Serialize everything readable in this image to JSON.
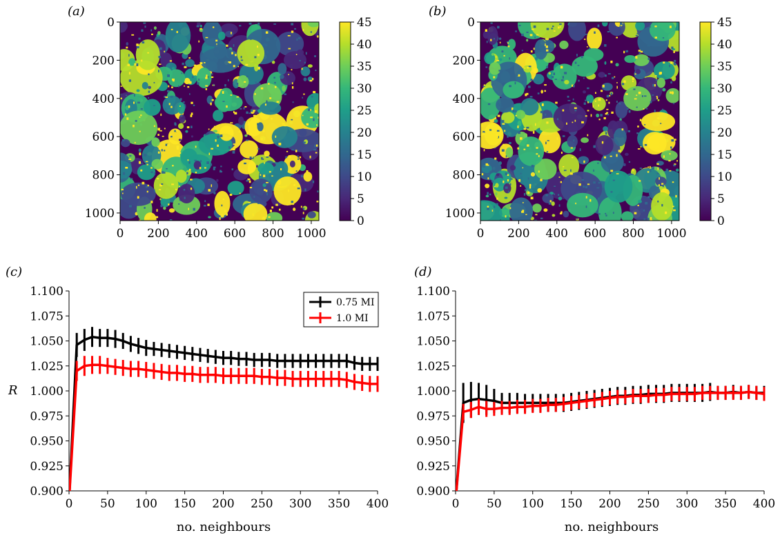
{
  "figure": {
    "panels": [
      {
        "id": "a",
        "label": "(a)"
      },
      {
        "id": "b",
        "label": "(b)"
      },
      {
        "id": "c",
        "label": "(c)"
      },
      {
        "id": "d",
        "label": "(d)"
      }
    ]
  },
  "colors": {
    "viridis": [
      "#440154",
      "#482878",
      "#3e4a89",
      "#31688e",
      "#26828e",
      "#1f9e89",
      "#35b779",
      "#6ece58",
      "#b5de2b",
      "#fde725"
    ],
    "series_black": "#000000",
    "series_red": "#ff0000"
  },
  "chart_data": [
    {
      "panel": "a",
      "type": "heatmap",
      "xlim": [
        0,
        1040
      ],
      "ylim": [
        1040,
        0
      ],
      "xticks": [
        0,
        200,
        400,
        600,
        800,
        1000
      ],
      "yticks": [
        0,
        200,
        400,
        600,
        800,
        1000
      ],
      "colorbar": {
        "min": 0,
        "max": 45,
        "ticks": [
          0,
          5,
          10,
          15,
          20,
          25,
          30,
          35,
          40,
          45
        ],
        "colormap": "viridis"
      }
    },
    {
      "panel": "b",
      "type": "heatmap",
      "xlim": [
        0,
        1040
      ],
      "ylim": [
        1040,
        0
      ],
      "xticks": [
        0,
        200,
        400,
        600,
        800,
        1000
      ],
      "yticks": [
        0,
        200,
        400,
        600,
        800,
        1000
      ],
      "colorbar": {
        "min": 0,
        "max": 45,
        "ticks": [
          0,
          5,
          10,
          15,
          20,
          25,
          30,
          35,
          40,
          45
        ],
        "colormap": "viridis"
      }
    },
    {
      "panel": "c",
      "type": "line",
      "xlabel": "no. neighbours",
      "ylabel": "R",
      "xlim": [
        0,
        400
      ],
      "ylim": [
        0.9,
        1.1
      ],
      "xticks": [
        0,
        50,
        100,
        150,
        200,
        250,
        300,
        350,
        400
      ],
      "yticks": [
        "0.900",
        "0.925",
        "0.950",
        "0.975",
        "1.000",
        "1.025",
        "1.050",
        "1.075",
        "1.100"
      ],
      "legend": {
        "position": "top-right",
        "entries": [
          "0.75 MI",
          "1.0 MI"
        ]
      },
      "x": [
        0,
        10,
        20,
        30,
        40,
        50,
        60,
        70,
        80,
        90,
        100,
        110,
        120,
        130,
        140,
        150,
        160,
        170,
        180,
        190,
        200,
        210,
        220,
        230,
        240,
        250,
        260,
        270,
        280,
        290,
        300,
        310,
        320,
        330,
        340,
        350,
        360,
        370,
        380,
        390,
        400
      ],
      "series": [
        {
          "name": "0.75 MI",
          "color": "#000000",
          "values": [
            0.89,
            1.046,
            1.051,
            1.054,
            1.053,
            1.053,
            1.052,
            1.05,
            1.047,
            1.045,
            1.043,
            1.042,
            1.041,
            1.04,
            1.039,
            1.038,
            1.037,
            1.036,
            1.035,
            1.034,
            1.033,
            1.033,
            1.032,
            1.032,
            1.031,
            1.031,
            1.031,
            1.03,
            1.03,
            1.03,
            1.03,
            1.03,
            1.03,
            1.03,
            1.03,
            1.03,
            1.03,
            1.028,
            1.027,
            1.027,
            1.027
          ],
          "errors": [
            0,
            0.012,
            0.011,
            0.01,
            0.009,
            0.009,
            0.009,
            0.008,
            0.008,
            0.008,
            0.008,
            0.007,
            0.007,
            0.007,
            0.007,
            0.007,
            0.007,
            0.007,
            0.007,
            0.007,
            0.007,
            0.007,
            0.007,
            0.007,
            0.007,
            0.007,
            0.007,
            0.007,
            0.007,
            0.007,
            0.007,
            0.007,
            0.007,
            0.007,
            0.007,
            0.007,
            0.007,
            0.007,
            0.007,
            0.007,
            0.007
          ]
        },
        {
          "name": "1.0 MI",
          "color": "#ff0000",
          "values": [
            0.89,
            1.02,
            1.025,
            1.026,
            1.026,
            1.025,
            1.024,
            1.023,
            1.022,
            1.022,
            1.021,
            1.02,
            1.019,
            1.018,
            1.018,
            1.017,
            1.017,
            1.016,
            1.016,
            1.016,
            1.015,
            1.015,
            1.015,
            1.015,
            1.015,
            1.014,
            1.014,
            1.013,
            1.013,
            1.012,
            1.012,
            1.012,
            1.012,
            1.012,
            1.012,
            1.012,
            1.011,
            1.009,
            1.008,
            1.007,
            1.007
          ],
          "errors": [
            0,
            0.01,
            0.01,
            0.009,
            0.009,
            0.008,
            0.008,
            0.008,
            0.008,
            0.008,
            0.008,
            0.008,
            0.008,
            0.008,
            0.008,
            0.008,
            0.008,
            0.008,
            0.008,
            0.008,
            0.008,
            0.008,
            0.008,
            0.008,
            0.008,
            0.008,
            0.008,
            0.008,
            0.008,
            0.008,
            0.008,
            0.008,
            0.008,
            0.008,
            0.008,
            0.008,
            0.008,
            0.008,
            0.008,
            0.008,
            0.008
          ]
        }
      ]
    },
    {
      "panel": "d",
      "type": "line",
      "xlabel": "no. neighbours",
      "ylabel": "",
      "xlim": [
        0,
        400
      ],
      "ylim": [
        0.9,
        1.1
      ],
      "xticks": [
        0,
        50,
        100,
        150,
        200,
        250,
        300,
        350,
        400
      ],
      "yticks": [
        "0.900",
        "0.925",
        "0.950",
        "0.975",
        "1.000",
        "1.025",
        "1.050",
        "1.075",
        "1.100"
      ],
      "x": [
        0,
        10,
        20,
        30,
        40,
        50,
        60,
        70,
        80,
        90,
        100,
        110,
        120,
        130,
        140,
        150,
        160,
        170,
        180,
        190,
        200,
        210,
        220,
        230,
        240,
        250,
        260,
        270,
        280,
        290,
        300,
        310,
        320,
        330,
        340,
        350,
        360,
        370,
        380,
        390,
        400
      ],
      "series": [
        {
          "name": "0.75 MI",
          "color": "#000000",
          "values": [
            0.89,
            0.988,
            0.991,
            0.992,
            0.991,
            0.99,
            0.988,
            0.988,
            0.988,
            0.988,
            0.988,
            0.988,
            0.988,
            0.988,
            0.988,
            0.989,
            0.99,
            0.991,
            0.992,
            0.993,
            0.994,
            0.995,
            0.995,
            0.996,
            0.996,
            0.997,
            0.997,
            0.997,
            0.998,
            0.998,
            0.998,
            0.998,
            0.998,
            0.999,
            0.998,
            0.998,
            0.999,
            0.998,
            0.999,
            0.998,
            0.998
          ],
          "errors": [
            0,
            0.02,
            0.018,
            0.016,
            0.015,
            0.012,
            0.01,
            0.01,
            0.01,
            0.009,
            0.009,
            0.009,
            0.009,
            0.009,
            0.009,
            0.009,
            0.009,
            0.009,
            0.009,
            0.009,
            0.009,
            0.009,
            0.009,
            0.009,
            0.009,
            0.009,
            0.009,
            0.009,
            0.009,
            0.009,
            0.009,
            0.009,
            0.009,
            0.009,
            0.007,
            0.007,
            0.007,
            0.007,
            0.007,
            0.007,
            0.007
          ]
        },
        {
          "name": "1.0 MI",
          "color": "#ff0000",
          "values": [
            0.89,
            0.979,
            0.981,
            0.984,
            0.982,
            0.982,
            0.983,
            0.983,
            0.984,
            0.984,
            0.985,
            0.985,
            0.986,
            0.986,
            0.987,
            0.988,
            0.989,
            0.99,
            0.991,
            0.992,
            0.993,
            0.994,
            0.994,
            0.995,
            0.995,
            0.995,
            0.996,
            0.996,
            0.997,
            0.997,
            0.997,
            0.997,
            0.998,
            0.998,
            0.998,
            0.998,
            0.998,
            0.998,
            0.999,
            0.998,
            0.997
          ],
          "errors": [
            0,
            0.008,
            0.008,
            0.008,
            0.008,
            0.007,
            0.007,
            0.007,
            0.007,
            0.007,
            0.007,
            0.007,
            0.007,
            0.007,
            0.007,
            0.007,
            0.007,
            0.007,
            0.007,
            0.007,
            0.007,
            0.007,
            0.007,
            0.007,
            0.007,
            0.007,
            0.007,
            0.007,
            0.007,
            0.007,
            0.007,
            0.007,
            0.007,
            0.007,
            0.007,
            0.007,
            0.007,
            0.007,
            0.007,
            0.007,
            0.007
          ]
        }
      ]
    }
  ]
}
